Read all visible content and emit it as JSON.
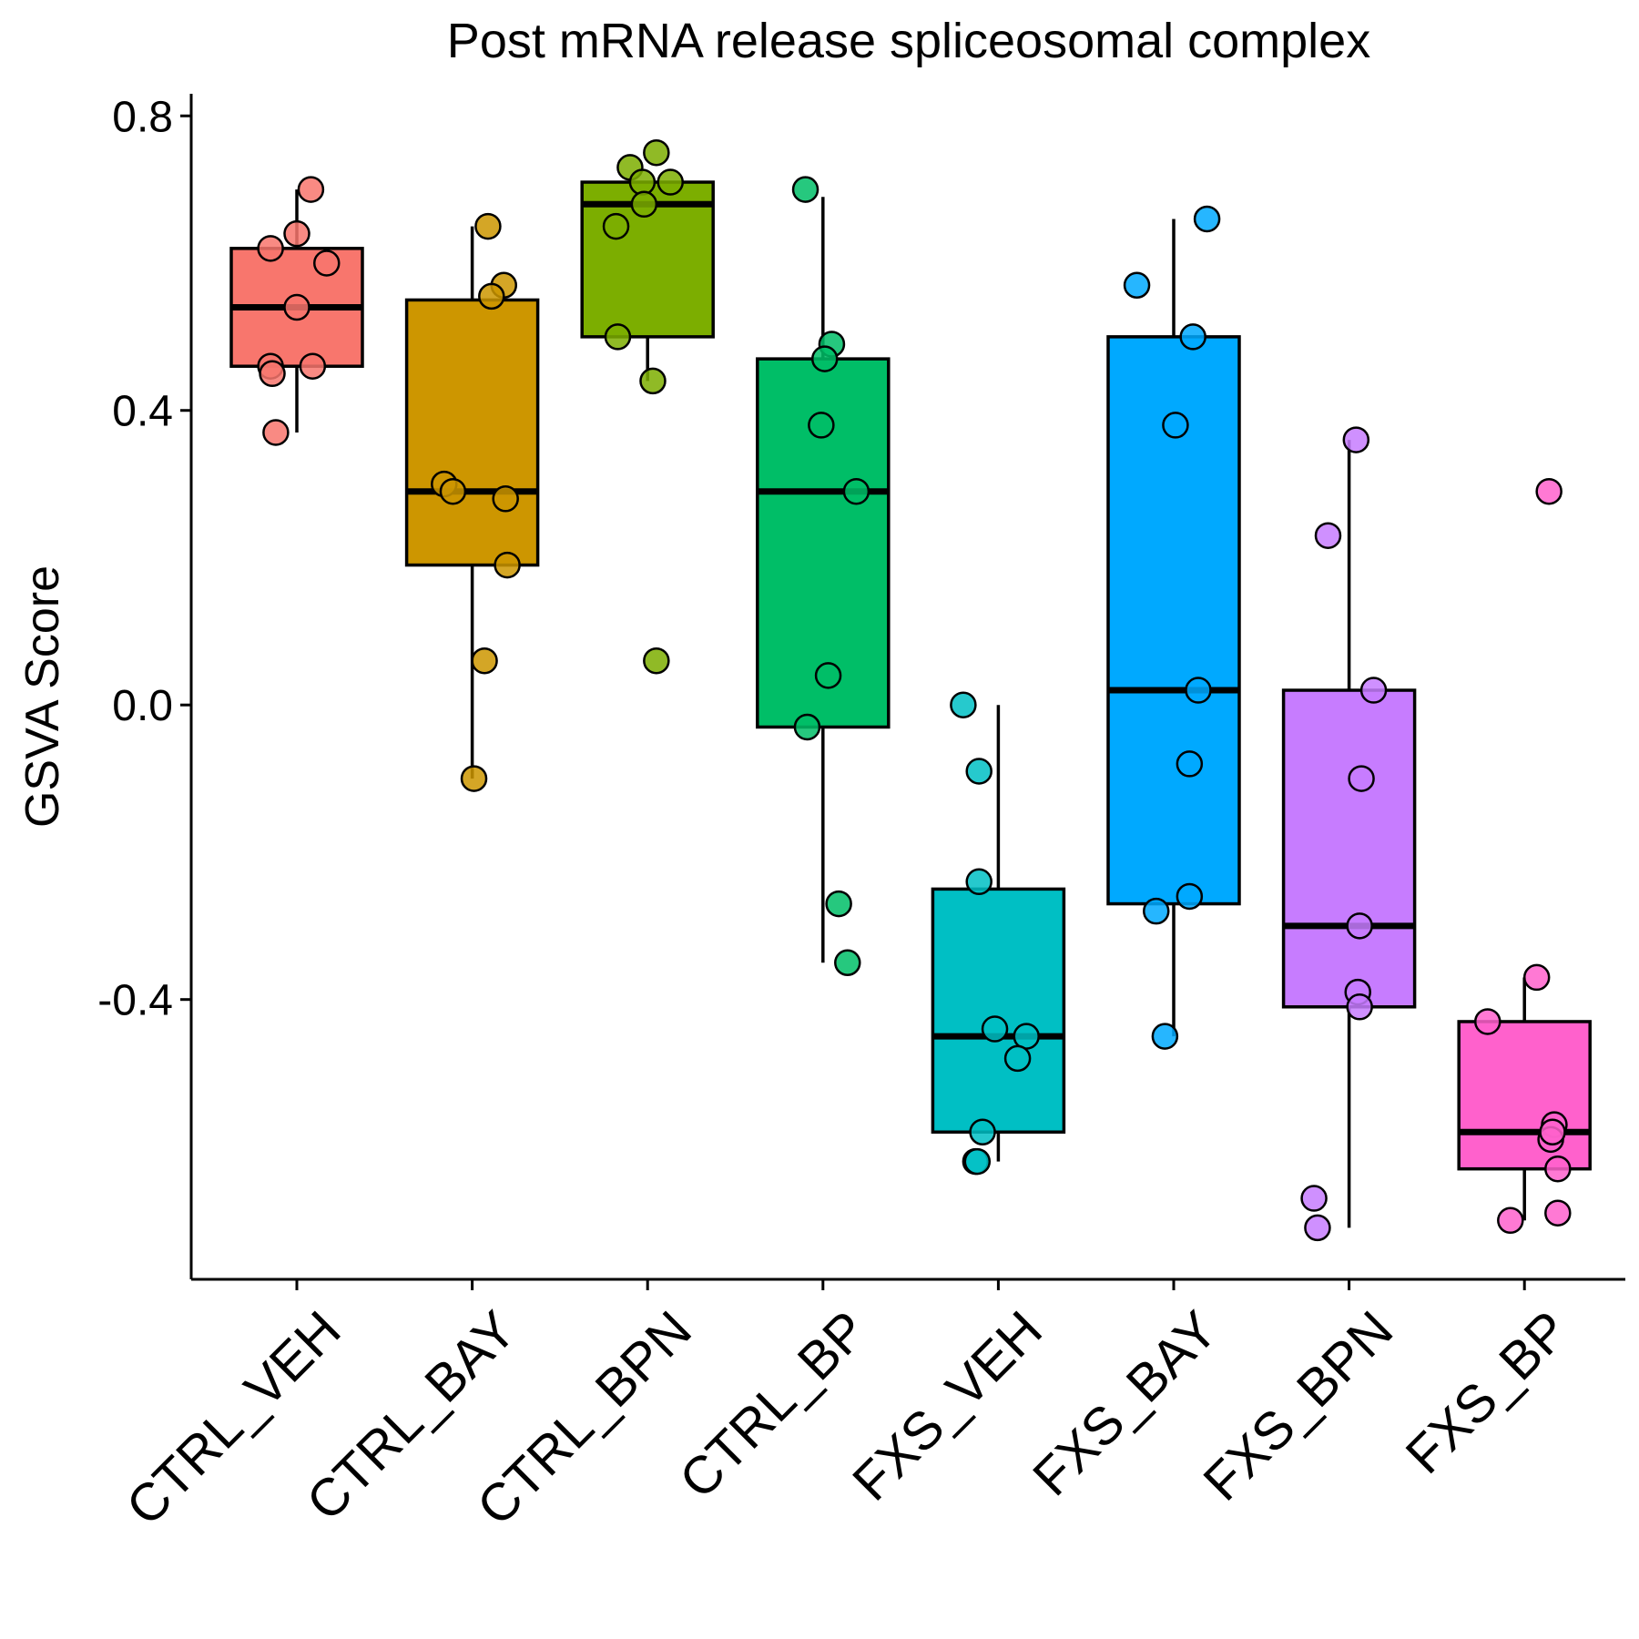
{
  "chart_data": {
    "type": "box",
    "title": "Post mRNA release spliceosomal complex",
    "xlabel": "",
    "ylabel": "GSVA Score",
    "ylim": [
      -0.78,
      0.83
    ],
    "yticks": [
      -0.4,
      0.0,
      0.4,
      0.8
    ],
    "ytick_labels": [
      "-0.4",
      "0.0",
      "0.4",
      "0.8"
    ],
    "categories": [
      "CTRL_VEH",
      "CTRL_BAY",
      "CTRL_BPN",
      "CTRL_BP",
      "FXS_VEH",
      "FXS_BAY",
      "FXS_BPN",
      "FXS_BP"
    ],
    "colors": [
      "#F8766D",
      "#CD9600",
      "#7CAE00",
      "#00BE67",
      "#00BFC4",
      "#00A9FF",
      "#C77CFF",
      "#FF61CC"
    ],
    "grid": false,
    "legend": "none",
    "series": [
      {
        "category": "CTRL_VEH",
        "box": {
          "lower_whisker": 0.37,
          "q1": 0.46,
          "median": 0.54,
          "q3": 0.62,
          "upper_whisker": 0.7
        },
        "points": [
          {
            "x": 0.08,
            "y": 0.7
          },
          {
            "x": 0.0,
            "y": 0.64
          },
          {
            "x": -0.15,
            "y": 0.62
          },
          {
            "x": 0.17,
            "y": 0.6
          },
          {
            "x": 0.0,
            "y": 0.54
          },
          {
            "x": 0.09,
            "y": 0.46
          },
          {
            "x": -0.15,
            "y": 0.46
          },
          {
            "x": -0.14,
            "y": 0.45
          },
          {
            "x": -0.12,
            "y": 0.37
          }
        ]
      },
      {
        "category": "CTRL_BAY",
        "box": {
          "lower_whisker": -0.1,
          "q1": 0.19,
          "median": 0.29,
          "q3": 0.55,
          "upper_whisker": 0.65
        },
        "points": [
          {
            "x": 0.09,
            "y": 0.65
          },
          {
            "x": 0.18,
            "y": 0.57
          },
          {
            "x": 0.11,
            "y": 0.555
          },
          {
            "x": -0.16,
            "y": 0.3
          },
          {
            "x": -0.11,
            "y": 0.29
          },
          {
            "x": 0.19,
            "y": 0.28
          },
          {
            "x": 0.2,
            "y": 0.19
          },
          {
            "x": 0.07,
            "y": 0.06
          },
          {
            "x": 0.01,
            "y": -0.1
          }
        ]
      },
      {
        "category": "CTRL_BPN",
        "box": {
          "lower_whisker": 0.44,
          "q1": 0.5,
          "median": 0.68,
          "q3": 0.71,
          "upper_whisker": 0.71
        },
        "points": [
          {
            "x": 0.05,
            "y": 0.75
          },
          {
            "x": -0.1,
            "y": 0.73
          },
          {
            "x": -0.03,
            "y": 0.71
          },
          {
            "x": 0.13,
            "y": 0.71
          },
          {
            "x": -0.02,
            "y": 0.68
          },
          {
            "x": -0.18,
            "y": 0.65
          },
          {
            "x": -0.17,
            "y": 0.5
          },
          {
            "x": 0.03,
            "y": 0.44
          },
          {
            "x": 0.05,
            "y": 0.06
          }
        ]
      },
      {
        "category": "CTRL_BP",
        "box": {
          "lower_whisker": -0.35,
          "q1": -0.03,
          "median": 0.29,
          "q3": 0.47,
          "upper_whisker": 0.69
        },
        "points": [
          {
            "x": -0.1,
            "y": 0.7
          },
          {
            "x": 0.05,
            "y": 0.49
          },
          {
            "x": 0.01,
            "y": 0.47
          },
          {
            "x": -0.01,
            "y": 0.38
          },
          {
            "x": 0.19,
            "y": 0.29
          },
          {
            "x": 0.03,
            "y": 0.04
          },
          {
            "x": -0.09,
            "y": -0.03
          },
          {
            "x": 0.09,
            "y": -0.27
          },
          {
            "x": 0.14,
            "y": -0.35
          }
        ]
      },
      {
        "category": "FXS_VEH",
        "box": {
          "lower_whisker": -0.62,
          "q1": -0.58,
          "median": -0.45,
          "q3": -0.25,
          "upper_whisker": 0.0
        },
        "points": [
          {
            "x": -0.2,
            "y": 0.0
          },
          {
            "x": -0.11,
            "y": -0.09
          },
          {
            "x": -0.11,
            "y": -0.24
          },
          {
            "x": -0.02,
            "y": -0.44
          },
          {
            "x": 0.16,
            "y": -0.45
          },
          {
            "x": 0.11,
            "y": -0.48
          },
          {
            "x": -0.09,
            "y": -0.58
          },
          {
            "x": -0.13,
            "y": -0.62
          },
          {
            "x": -0.12,
            "y": -0.62
          }
        ]
      },
      {
        "category": "FXS_BAY",
        "box": {
          "lower_whisker": -0.45,
          "q1": -0.27,
          "median": 0.02,
          "q3": 0.5,
          "upper_whisker": 0.66
        },
        "points": [
          {
            "x": 0.19,
            "y": 0.66
          },
          {
            "x": -0.21,
            "y": 0.57
          },
          {
            "x": 0.11,
            "y": 0.5
          },
          {
            "x": 0.01,
            "y": 0.38
          },
          {
            "x": 0.14,
            "y": 0.02
          },
          {
            "x": 0.09,
            "y": -0.08
          },
          {
            "x": 0.09,
            "y": -0.26
          },
          {
            "x": -0.1,
            "y": -0.28
          },
          {
            "x": -0.05,
            "y": -0.45
          }
        ]
      },
      {
        "category": "FXS_BPN",
        "box": {
          "lower_whisker": -0.71,
          "q1": -0.41,
          "median": -0.3,
          "q3": 0.02,
          "upper_whisker": 0.36
        },
        "points": [
          {
            "x": 0.04,
            "y": 0.36
          },
          {
            "x": -0.12,
            "y": 0.23
          },
          {
            "x": 0.14,
            "y": 0.02
          },
          {
            "x": 0.07,
            "y": -0.1
          },
          {
            "x": 0.06,
            "y": -0.3
          },
          {
            "x": 0.05,
            "y": -0.39
          },
          {
            "x": 0.06,
            "y": -0.41
          },
          {
            "x": -0.2,
            "y": -0.67
          },
          {
            "x": -0.18,
            "y": -0.71
          }
        ]
      },
      {
        "category": "FXS_BP",
        "box": {
          "lower_whisker": -0.7,
          "q1": -0.63,
          "median": -0.58,
          "q3": -0.43,
          "upper_whisker": -0.37
        },
        "points": [
          {
            "x": 0.14,
            "y": 0.29
          },
          {
            "x": 0.07,
            "y": -0.37
          },
          {
            "x": -0.21,
            "y": -0.43
          },
          {
            "x": 0.17,
            "y": -0.57
          },
          {
            "x": 0.15,
            "y": -0.59
          },
          {
            "x": 0.16,
            "y": -0.58
          },
          {
            "x": 0.19,
            "y": -0.63
          },
          {
            "x": 0.19,
            "y": -0.69
          },
          {
            "x": -0.08,
            "y": -0.7
          }
        ]
      }
    ]
  }
}
